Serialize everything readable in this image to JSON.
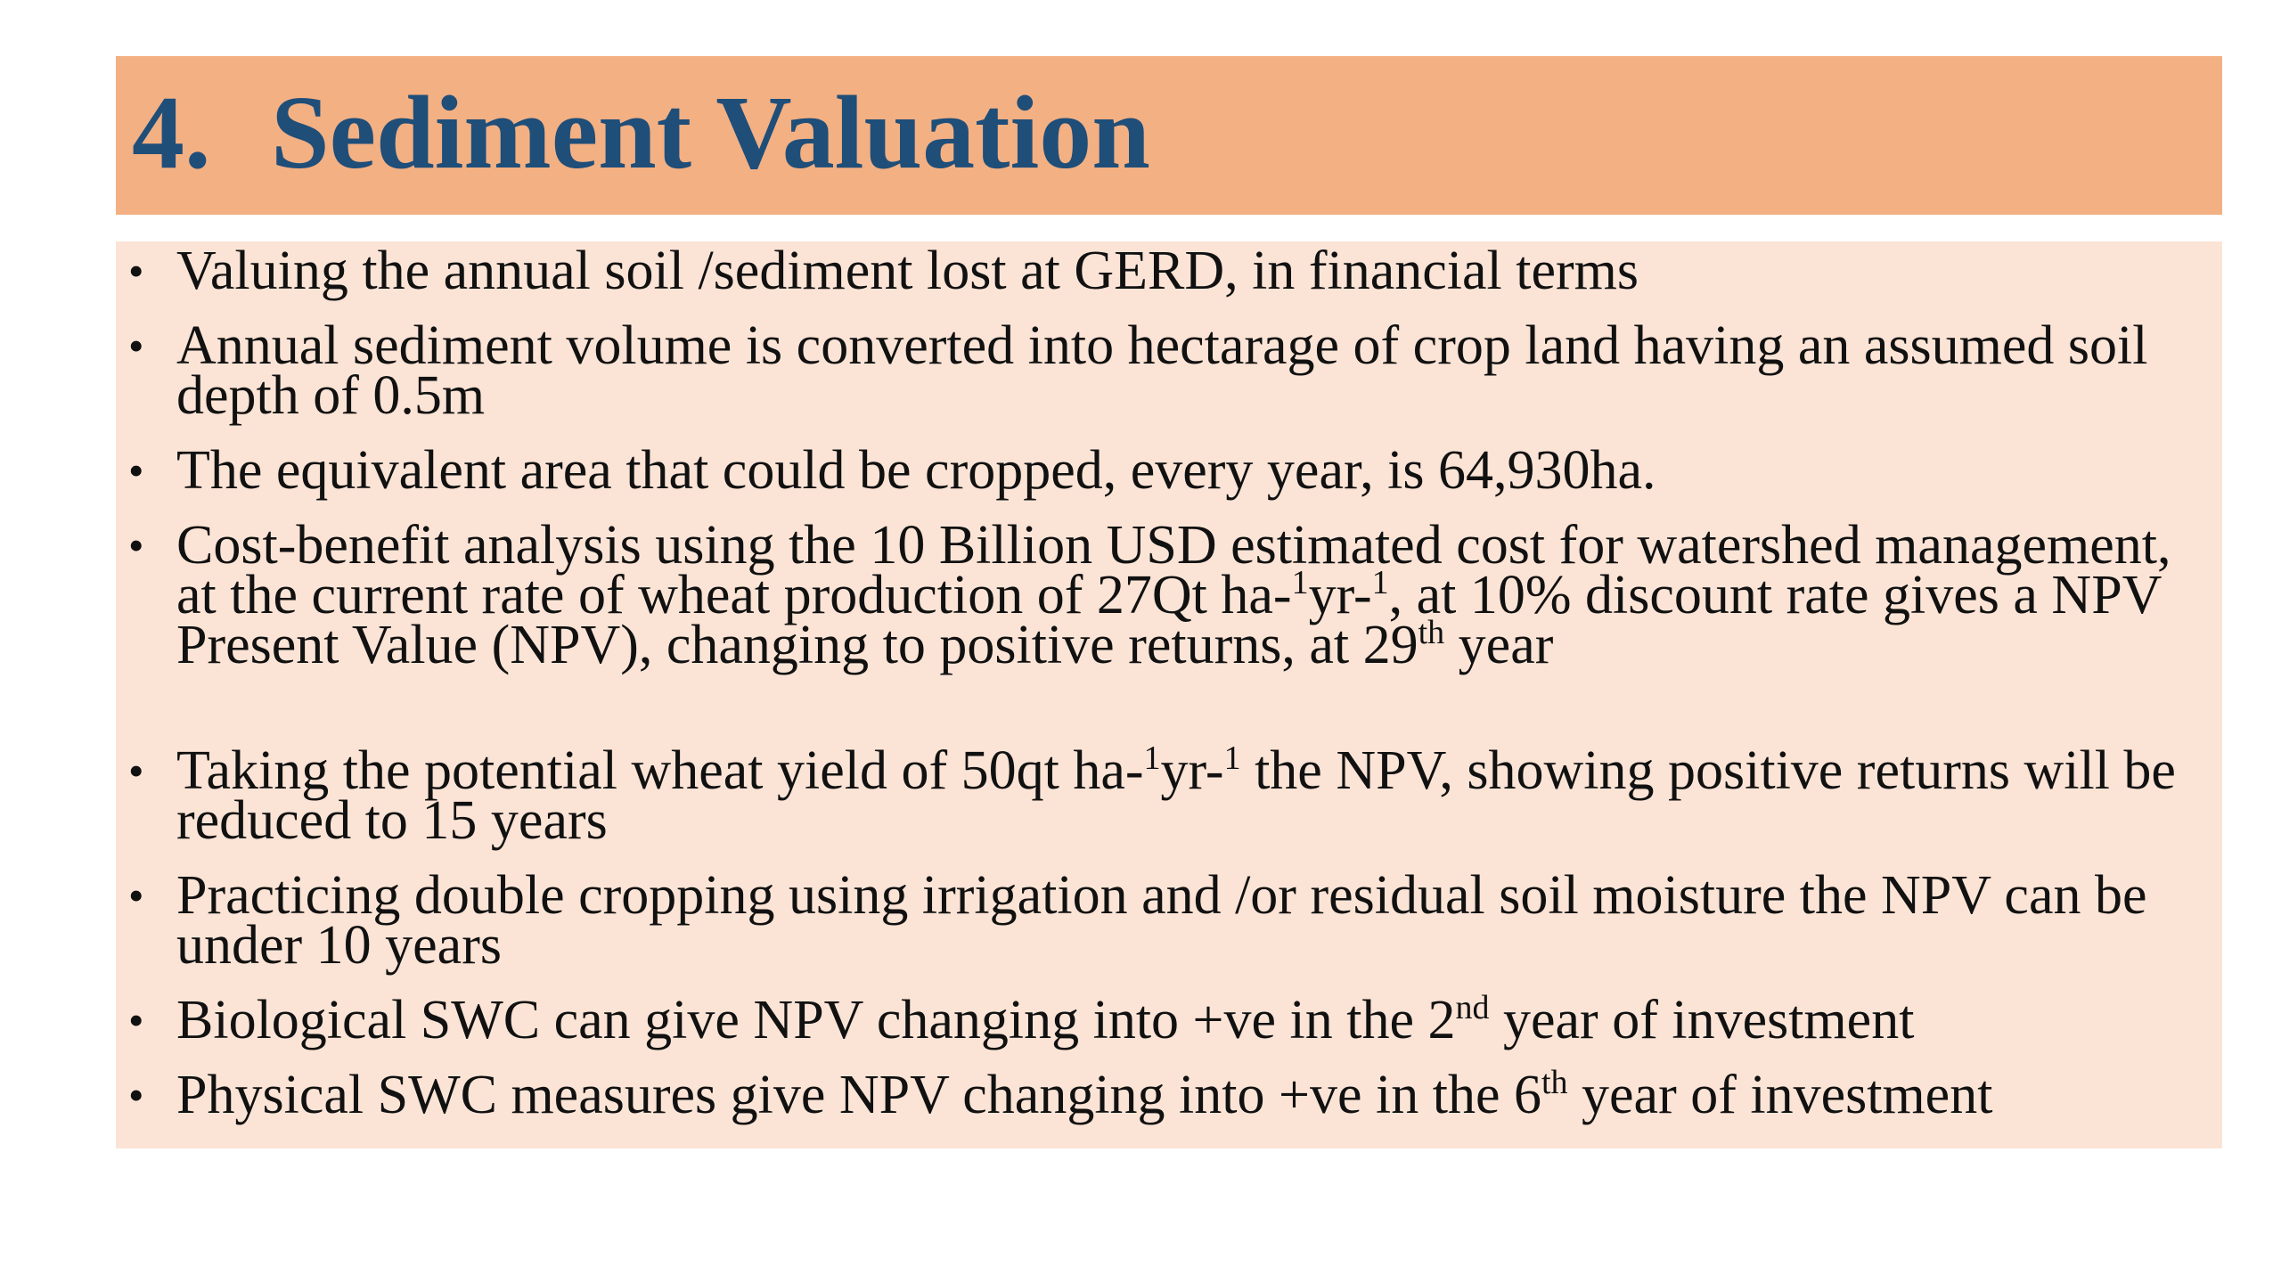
{
  "slide": {
    "title_number": "4.",
    "title_text": "Sediment Valuation",
    "colors": {
      "title_bar": "#f3b083",
      "title_text": "#1f4e79",
      "content_bg": "#fbe4d6",
      "body_text": "#111111"
    }
  },
  "bullets": [
    {
      "text": "Valuing the annual soil /sediment lost at GERD, in financial terms"
    },
    {
      "text": "Annual sediment volume is converted into hectarage of crop land having an assumed soil depth of 0.5m"
    },
    {
      "text": "The equivalent area that could be cropped, every year, is 64,930ha."
    },
    {
      "p1": "Cost-benefit analysis using the 10 Billion USD estimated cost for watershed management, at the current rate of wheat production of 27Qt ha-",
      "s1": "1",
      "p2": "yr-",
      "s2": "1",
      "p3": ", at 10% discount rate gives a NPV Present Value (NPV), changing to positive returns, at 29",
      "s3": "th",
      "p4": " year"
    },
    {
      "p1": "Taking the potential wheat yield of 50qt ha-",
      "s1": "1",
      "p2": "yr-",
      "s2": "1",
      "p3": " the NPV, showing positive returns will be reduced to 15 years"
    },
    {
      "text": "Practicing double cropping using irrigation and /or residual soil moisture the NPV can be under 10 years"
    },
    {
      "p1": "Biological SWC can give NPV changing into +ve in the 2",
      "s1": "nd",
      "p2": " year of investment"
    },
    {
      "p1": "Physical SWC measures give NPV changing into +ve in the 6",
      "s1": "th",
      "p2": " year of investment"
    }
  ]
}
